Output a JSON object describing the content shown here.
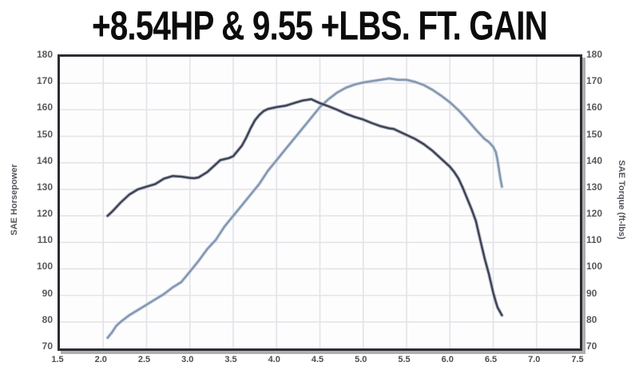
{
  "title": "+8.54HP & 9.55 +LBS. FT. GAIN",
  "colors": {
    "horsepower_line": "#8497b0",
    "horsepower_halo": "#bcc9da",
    "torque_line": "#3e4456",
    "torque_halo": "#9aa0b0",
    "grid_vertical": "#e2e3e8",
    "grid_horizontal": "#e7e3e6",
    "frame": "#2c2d33",
    "title_text": "#0c0c0c"
  },
  "chart_data": {
    "type": "line",
    "title": "+8.54HP & 9.55 +LBS. FT. GAIN",
    "grid": true,
    "legend": "none",
    "x_axis": {
      "min": 1.5,
      "max": 7.5,
      "tick_labels": [
        "1.5",
        "2.0",
        "2.5",
        "3.0",
        "3.5",
        "4.0",
        "4.5",
        "5.0",
        "5.5",
        "6.0",
        "6.5",
        "7.0",
        "7.5"
      ]
    },
    "y_axis_left": {
      "label": "SAE Horsepower",
      "min": 70,
      "max": 180,
      "tick_labels": [
        "180",
        "170",
        "160",
        "150",
        "140",
        "130",
        "120",
        "110",
        "100",
        "90",
        "80",
        "70"
      ]
    },
    "y_axis_right": {
      "label": "SAE Torque (ft-lbs)",
      "min": 70,
      "max": 180,
      "tick_labels": [
        "180",
        "170",
        "160",
        "150",
        "140",
        "130",
        "120",
        "110",
        "100",
        "90",
        "80",
        "70"
      ]
    },
    "series": [
      {
        "name": "SAE Horsepower",
        "axis": "left",
        "color_key": "horsepower",
        "points": [
          [
            2.05,
            74
          ],
          [
            2.1,
            76
          ],
          [
            2.15,
            78.5
          ],
          [
            2.2,
            80
          ],
          [
            2.3,
            82.5
          ],
          [
            2.4,
            84.5
          ],
          [
            2.5,
            86.5
          ],
          [
            2.6,
            88.5
          ],
          [
            2.7,
            90.5
          ],
          [
            2.8,
            93
          ],
          [
            2.9,
            95
          ],
          [
            3.0,
            99
          ],
          [
            3.1,
            103
          ],
          [
            3.2,
            107.5
          ],
          [
            3.3,
            111
          ],
          [
            3.4,
            116
          ],
          [
            3.5,
            120
          ],
          [
            3.6,
            124
          ],
          [
            3.7,
            128
          ],
          [
            3.8,
            132
          ],
          [
            3.9,
            137
          ],
          [
            4.0,
            141
          ],
          [
            4.1,
            145
          ],
          [
            4.2,
            149
          ],
          [
            4.3,
            153
          ],
          [
            4.4,
            157
          ],
          [
            4.5,
            161
          ],
          [
            4.6,
            164
          ],
          [
            4.7,
            166.5
          ],
          [
            4.8,
            168.3
          ],
          [
            4.9,
            169.5
          ],
          [
            5.0,
            170.3
          ],
          [
            5.1,
            170.8
          ],
          [
            5.2,
            171.3
          ],
          [
            5.3,
            171.8
          ],
          [
            5.4,
            171.3
          ],
          [
            5.5,
            171.3
          ],
          [
            5.6,
            170.5
          ],
          [
            5.7,
            169.3
          ],
          [
            5.8,
            167.5
          ],
          [
            5.9,
            165.3
          ],
          [
            6.0,
            162.8
          ],
          [
            6.1,
            159.8
          ],
          [
            6.2,
            156.3
          ],
          [
            6.3,
            152.5
          ],
          [
            6.4,
            149
          ],
          [
            6.45,
            147.8
          ],
          [
            6.5,
            146
          ],
          [
            6.53,
            144
          ],
          [
            6.55,
            141
          ],
          [
            6.58,
            134.5
          ],
          [
            6.6,
            131
          ]
        ]
      },
      {
        "name": "SAE Torque",
        "axis": "right",
        "color_key": "torque",
        "points": [
          [
            2.05,
            120
          ],
          [
            2.1,
            121.5
          ],
          [
            2.2,
            125
          ],
          [
            2.3,
            128
          ],
          [
            2.4,
            130
          ],
          [
            2.5,
            131
          ],
          [
            2.6,
            132
          ],
          [
            2.7,
            134
          ],
          [
            2.8,
            135
          ],
          [
            2.9,
            134.8
          ],
          [
            3.0,
            134.3
          ],
          [
            3.05,
            134.2
          ],
          [
            3.1,
            134.5
          ],
          [
            3.2,
            136.5
          ],
          [
            3.3,
            139.5
          ],
          [
            3.35,
            141
          ],
          [
            3.45,
            141.8
          ],
          [
            3.5,
            142.5
          ],
          [
            3.6,
            146.5
          ],
          [
            3.65,
            149.5
          ],
          [
            3.7,
            153
          ],
          [
            3.75,
            156
          ],
          [
            3.8,
            158
          ],
          [
            3.85,
            159.5
          ],
          [
            3.9,
            160.3
          ],
          [
            4.0,
            161
          ],
          [
            4.1,
            161.5
          ],
          [
            4.2,
            162.5
          ],
          [
            4.3,
            163.5
          ],
          [
            4.4,
            164
          ],
          [
            4.5,
            162.5
          ],
          [
            4.6,
            161.3
          ],
          [
            4.7,
            160
          ],
          [
            4.8,
            158.5
          ],
          [
            4.9,
            157.3
          ],
          [
            5.0,
            156.3
          ],
          [
            5.1,
            155
          ],
          [
            5.2,
            153.8
          ],
          [
            5.3,
            153
          ],
          [
            5.35,
            152.8
          ],
          [
            5.5,
            150.5
          ],
          [
            5.6,
            149
          ],
          [
            5.7,
            147
          ],
          [
            5.8,
            144.5
          ],
          [
            5.9,
            141.5
          ],
          [
            6.0,
            138.5
          ],
          [
            6.05,
            136.5
          ],
          [
            6.1,
            134
          ],
          [
            6.15,
            130.5
          ],
          [
            6.2,
            126.5
          ],
          [
            6.25,
            122.5
          ],
          [
            6.3,
            118
          ],
          [
            6.35,
            111
          ],
          [
            6.4,
            104
          ],
          [
            6.45,
            98
          ],
          [
            6.5,
            91
          ],
          [
            6.53,
            87.5
          ],
          [
            6.55,
            85.5
          ],
          [
            6.6,
            82.5
          ]
        ]
      }
    ]
  }
}
